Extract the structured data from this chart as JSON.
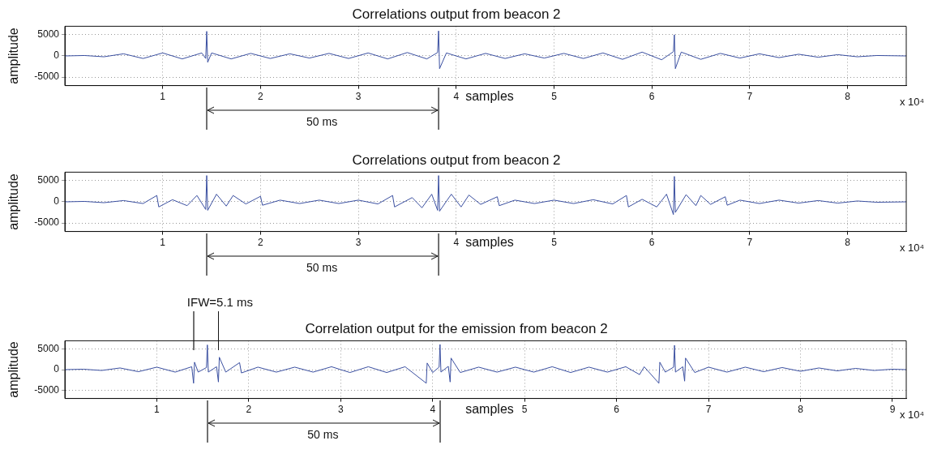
{
  "chart_data": [
    {
      "type": "line",
      "title": "Correlations output from beacon 2",
      "xlabel": "samples",
      "ylabel": "amplitude",
      "annotations": [
        "x 10⁴",
        "50 ms"
      ],
      "xlim": [
        0,
        8.6
      ],
      "ylim": [
        -7000,
        7000
      ],
      "xticks": [
        1,
        2,
        3,
        4,
        5,
        6,
        7,
        8
      ],
      "yticks": [
        -5000,
        0,
        5000
      ],
      "grid": true,
      "series": [
        {
          "color": "#3a4fa0",
          "x": [
            0,
            0.2,
            0.4,
            0.6,
            0.8,
            1,
            1.2,
            1.4,
            1.44,
            1.45,
            1.46,
            1.5,
            1.7,
            1.9,
            2.1,
            2.3,
            2.5,
            2.7,
            2.9,
            3.1,
            3.3,
            3.5,
            3.7,
            3.81,
            3.82,
            3.83,
            3.9,
            4.1,
            4.3,
            4.5,
            4.7,
            4.9,
            5.1,
            5.3,
            5.5,
            5.7,
            5.9,
            6.1,
            6.22,
            6.23,
            6.24,
            6.3,
            6.5,
            6.7,
            6.9,
            7.1,
            7.3,
            7.5,
            7.7,
            7.9,
            8.1,
            8.3,
            8.6
          ],
          "values": [
            0,
            100,
            -200,
            500,
            -600,
            700,
            -700,
            700,
            -600,
            5800,
            -1500,
            700,
            -700,
            600,
            -600,
            500,
            -500,
            600,
            -600,
            700,
            -700,
            800,
            -700,
            800,
            5900,
            -3000,
            700,
            -700,
            600,
            -600,
            500,
            -500,
            600,
            -600,
            700,
            -800,
            900,
            -900,
            1000,
            5000,
            -3000,
            900,
            -800,
            600,
            -500,
            500,
            -400,
            400,
            -300,
            300,
            -200,
            100,
            0
          ]
        }
      ]
    },
    {
      "type": "line",
      "title": "Correlations output from beacon 2",
      "xlabel": "samples",
      "ylabel": "amplitude",
      "annotations": [
        "x 10⁴",
        "50 ms"
      ],
      "xlim": [
        0,
        8.6
      ],
      "ylim": [
        -7000,
        7000
      ],
      "xticks": [
        1,
        2,
        3,
        4,
        5,
        6,
        7,
        8
      ],
      "yticks": [
        -5000,
        0,
        5000
      ],
      "grid": true,
      "series": [
        {
          "color": "#3a4fa0",
          "x": [
            0,
            0.2,
            0.4,
            0.6,
            0.8,
            0.94,
            0.96,
            1.1,
            1.25,
            1.35,
            1.44,
            1.45,
            1.46,
            1.55,
            1.65,
            1.72,
            1.85,
            2,
            2.02,
            2.2,
            2.4,
            2.6,
            2.8,
            3,
            3.2,
            3.35,
            3.37,
            3.55,
            3.65,
            3.75,
            3.81,
            3.82,
            3.83,
            3.95,
            4.05,
            4.13,
            4.25,
            4.42,
            4.44,
            4.6,
            4.8,
            5,
            5.2,
            5.4,
            5.6,
            5.74,
            5.76,
            5.9,
            6.05,
            6.15,
            6.22,
            6.23,
            6.24,
            6.35,
            6.45,
            6.5,
            6.6,
            6.75,
            6.77,
            6.9,
            7.1,
            7.3,
            7.5,
            7.7,
            7.9,
            8.1,
            8.3,
            8.6
          ],
          "values": [
            0,
            100,
            -200,
            300,
            -400,
            1500,
            -1200,
            500,
            -900,
            1500,
            -1800,
            6200,
            -2000,
            1800,
            -1000,
            1500,
            -500,
            1300,
            -800,
            400,
            -400,
            400,
            -400,
            400,
            -500,
            1500,
            -1200,
            1000,
            -1400,
            1800,
            -2000,
            6200,
            -2200,
            1800,
            -1200,
            1600,
            -600,
            1200,
            -900,
            400,
            -400,
            400,
            -400,
            500,
            -500,
            1500,
            -1200,
            600,
            -1200,
            1800,
            -3000,
            6000,
            -2500,
            1700,
            -900,
            1500,
            -600,
            1200,
            -800,
            400,
            -400,
            400,
            -300,
            300,
            -300,
            200,
            -100,
            0
          ]
        }
      ]
    },
    {
      "type": "line",
      "title": "Correlation output for the emission from beacon 2",
      "xlabel": "samples",
      "ylabel": "amplitude",
      "annotations": [
        "IFW=5.1 ms",
        "x 10⁴",
        "50 ms"
      ],
      "xlim": [
        0,
        9.15
      ],
      "ylim": [
        -7000,
        7000
      ],
      "xticks": [
        1,
        2,
        3,
        4,
        5,
        6,
        7,
        8,
        9
      ],
      "yticks": [
        -5000,
        0,
        5000
      ],
      "grid": true,
      "series": [
        {
          "color": "#3a4fa0",
          "x": [
            0,
            0.2,
            0.4,
            0.6,
            0.8,
            1,
            1.2,
            1.38,
            1.4,
            1.41,
            1.45,
            1.54,
            1.55,
            1.56,
            1.65,
            1.67,
            1.68,
            1.75,
            1.9,
            1.92,
            2.1,
            2.3,
            2.5,
            2.7,
            2.9,
            3.1,
            3.3,
            3.5,
            3.7,
            3.93,
            3.94,
            4,
            4.07,
            4.08,
            4.09,
            4.17,
            4.19,
            4.2,
            4.3,
            4.5,
            4.7,
            4.9,
            5.1,
            5.3,
            5.5,
            5.7,
            5.9,
            6.1,
            6.25,
            6.3,
            6.46,
            6.47,
            6.53,
            6.62,
            6.63,
            6.64,
            6.72,
            6.74,
            6.75,
            6.85,
            7,
            7.2,
            7.4,
            7.6,
            7.8,
            8,
            8.2,
            8.4,
            8.6,
            8.8,
            9,
            9.15
          ],
          "values": [
            0,
            100,
            -200,
            400,
            -500,
            600,
            -600,
            700,
            -3300,
            1800,
            -600,
            500,
            6000,
            -600,
            700,
            -3000,
            3000,
            -600,
            1700,
            -800,
            600,
            -600,
            600,
            -600,
            700,
            -700,
            700,
            -700,
            700,
            -3300,
            1600,
            -700,
            600,
            6100,
            -600,
            800,
            -3000,
            2800,
            -700,
            600,
            -600,
            600,
            -600,
            700,
            -700,
            600,
            -600,
            700,
            -1200,
            700,
            -3300,
            1800,
            -600,
            600,
            5900,
            -600,
            700,
            -2800,
            2800,
            -700,
            600,
            -600,
            600,
            -500,
            500,
            -400,
            400,
            -300,
            300,
            -200,
            100,
            0
          ]
        }
      ]
    }
  ]
}
